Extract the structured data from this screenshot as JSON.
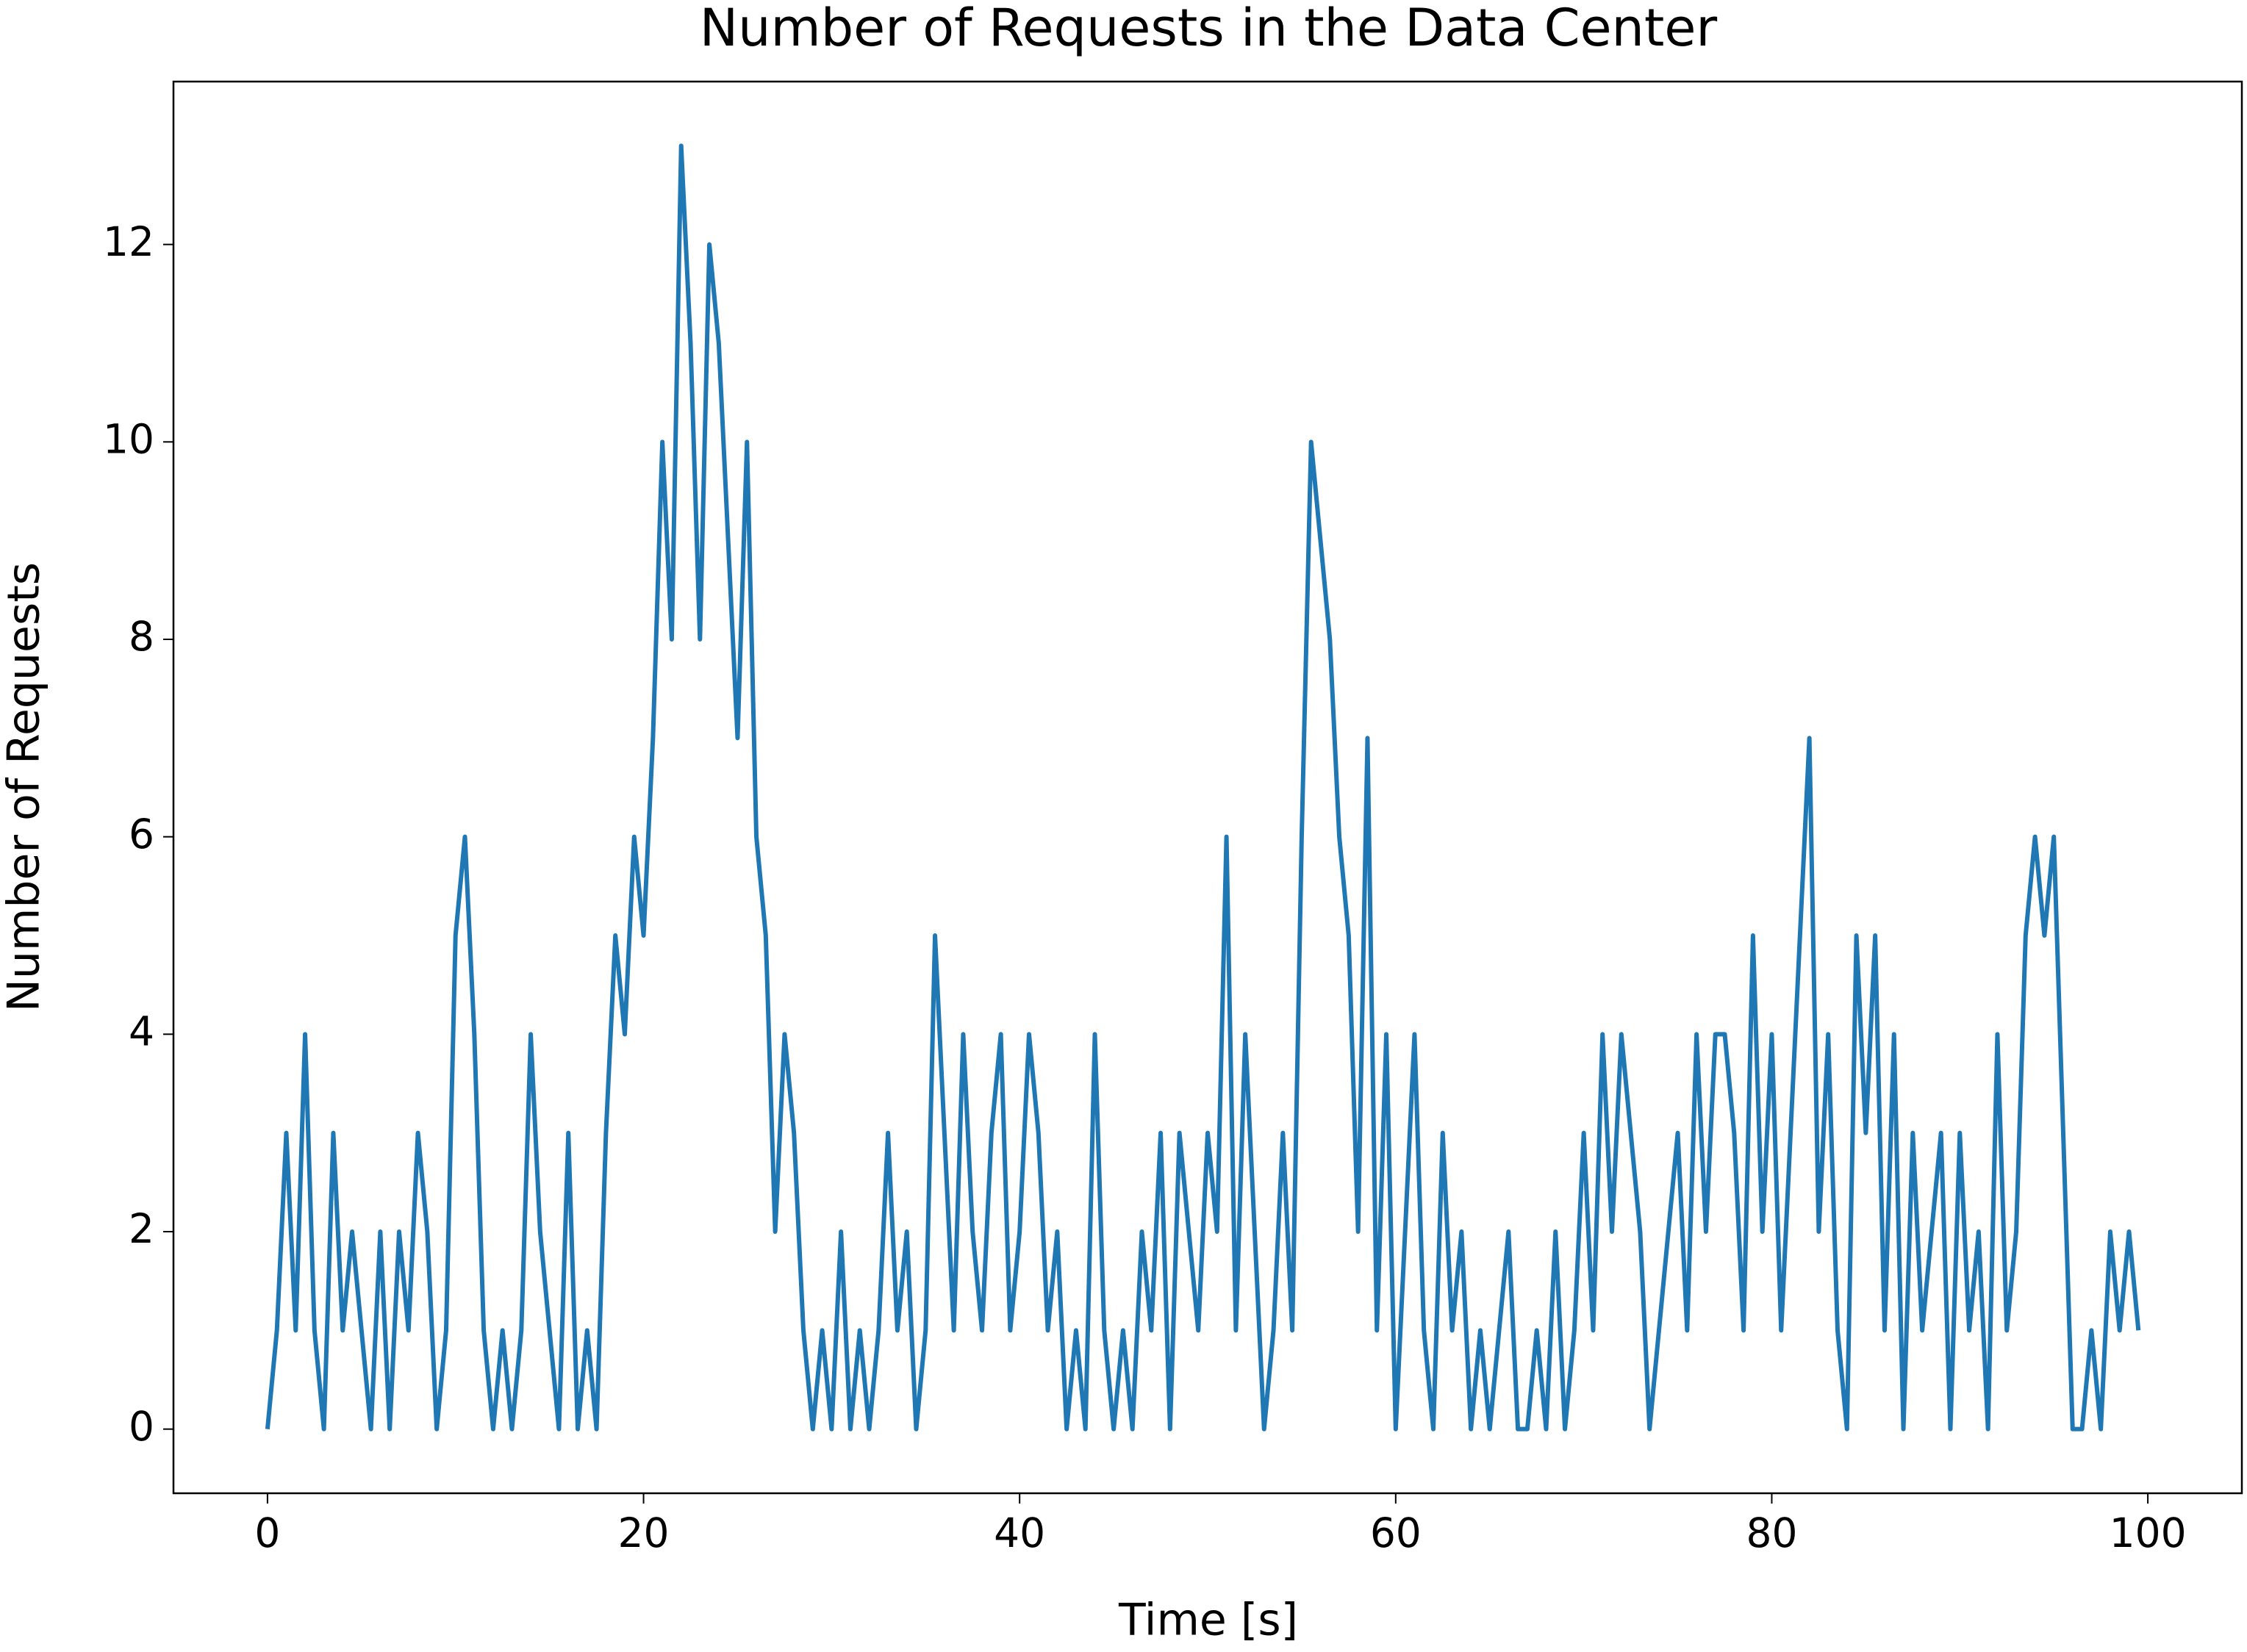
{
  "chart_data": {
    "type": "line",
    "title": "Number of Requests in the Data Center",
    "x_label": "Time [s]",
    "y_label": "Number of Requests",
    "xlim": [
      -5,
      105
    ],
    "ylim": [
      -0.65,
      13.65
    ],
    "xticks": [
      0,
      20,
      40,
      60,
      80,
      100
    ],
    "yticks": [
      0,
      2,
      4,
      6,
      8,
      10,
      12
    ],
    "x": [
      0,
      0.5,
      1,
      1.5,
      2,
      2.5,
      3,
      3.5,
      4,
      4.5,
      5,
      5.5,
      6,
      6.5,
      7,
      7.5,
      8,
      8.5,
      9,
      9.5,
      10,
      10.5,
      11,
      11.5,
      12,
      12.5,
      13,
      13.5,
      14,
      14.5,
      15,
      15.5,
      16,
      16.5,
      17,
      17.5,
      18,
      18.5,
      19,
      19.5,
      20,
      20.5,
      21,
      21.5,
      22,
      22.5,
      23,
      23.5,
      24,
      24.5,
      25,
      25.5,
      26,
      26.5,
      27,
      27.5,
      28,
      28.5,
      29,
      29.5,
      30,
      30.5,
      31,
      31.5,
      32,
      32.5,
      33,
      33.5,
      34,
      34.5,
      35,
      35.5,
      36,
      36.5,
      37,
      37.5,
      38,
      38.5,
      39,
      39.5,
      40,
      40.5,
      41,
      41.5,
      42,
      42.5,
      43,
      43.5,
      44,
      44.5,
      45,
      45.5,
      46,
      46.5,
      47,
      47.5,
      48,
      48.5,
      49,
      49.5,
      50,
      50.5,
      51,
      51.5,
      52,
      52.5,
      53,
      53.5,
      54,
      54.5,
      55,
      55.5,
      56,
      56.5,
      57,
      57.5,
      58,
      58.5,
      59,
      59.5,
      60,
      60.5,
      61,
      61.5,
      62,
      62.5,
      63,
      63.5,
      64,
      64.5,
      65,
      65.5,
      66,
      66.5,
      67,
      67.5,
      68,
      68.5,
      69,
      69.5,
      70,
      70.5,
      71,
      71.5,
      72,
      72.5,
      73,
      73.5,
      74,
      74.5,
      75,
      75.5,
      76,
      76.5,
      77,
      77.5,
      78,
      78.5,
      79,
      79.5,
      80,
      80.5,
      81,
      81.5,
      82,
      82.5,
      83,
      83.5,
      84,
      84.5,
      85,
      85.5,
      86,
      86.5,
      87,
      87.5,
      88,
      88.5,
      89,
      89.5,
      90,
      90.5,
      91,
      91.5,
      92,
      92.5,
      93,
      93.5,
      94,
      94.5,
      95,
      95.5,
      96,
      96.5,
      97,
      97.5,
      98,
      98.5,
      99,
      99.5
    ],
    "series": [
      {
        "color": "#1f77b4",
        "values": [
          0,
          1,
          3,
          1,
          4,
          1,
          0,
          3,
          1,
          2,
          1,
          0,
          2,
          0,
          2,
          1,
          3,
          2,
          0,
          1,
          5,
          6,
          4,
          1,
          0,
          1,
          0,
          1,
          4,
          2,
          1,
          0,
          3,
          0,
          1,
          0,
          3,
          5,
          4,
          6,
          5,
          7,
          10,
          8,
          13,
          11,
          8,
          12,
          11,
          9,
          7,
          10,
          6,
          5,
          2,
          4,
          3,
          1,
          0,
          1,
          0,
          2,
          0,
          1,
          0,
          1,
          3,
          1,
          2,
          0,
          1,
          5,
          3,
          1,
          4,
          2,
          1,
          3,
          4,
          1,
          2,
          4,
          3,
          1,
          2,
          0,
          1,
          0,
          4,
          1,
          0,
          1,
          0,
          2,
          1,
          3,
          0,
          3,
          2,
          1,
          3,
          2,
          6,
          1,
          4,
          2,
          0,
          1,
          3,
          1,
          6,
          10,
          9,
          8,
          6,
          5,
          2,
          7,
          1,
          4,
          0,
          2,
          4,
          1,
          0,
          3,
          1,
          2,
          0,
          1,
          0,
          1,
          2,
          0,
          0,
          1,
          0,
          2,
          0,
          1,
          3,
          1,
          4,
          2,
          4,
          3,
          2,
          0,
          1,
          2,
          3,
          1,
          4,
          2,
          4,
          4,
          3,
          1,
          5,
          2,
          4,
          1,
          3,
          5,
          7,
          2,
          4,
          1,
          0,
          5,
          3,
          5,
          1,
          4,
          0,
          3,
          1,
          2,
          3,
          0,
          3,
          1,
          2,
          0,
          4,
          1,
          2,
          5,
          6,
          5,
          6,
          3,
          0,
          0,
          1,
          0,
          2,
          1,
          2,
          1
        ]
      }
    ]
  }
}
